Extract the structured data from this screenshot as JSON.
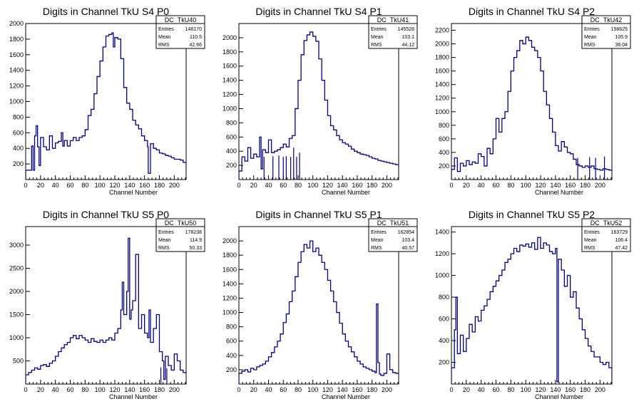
{
  "chart_data": [
    {
      "type": "histogram",
      "title": "Digits in Channel TkU S4 P0",
      "xlabel": "Channel Number",
      "ylabel": "",
      "xlim": [
        0,
        216
      ],
      "ylim": [
        0,
        2000
      ],
      "xticks": [
        "0",
        "20",
        "40",
        "60",
        "80",
        "100",
        "120",
        "140",
        "160",
        "180",
        "200"
      ],
      "yticks": [
        "200",
        "400",
        "600",
        "800",
        "1000",
        "1200",
        "1400",
        "1600",
        "1800",
        "2000"
      ],
      "stats": {
        "name": "DC_TkU40",
        "entries_label": "Entries",
        "entries": "148170",
        "mean_label": "Mean",
        "mean": "110.5",
        "rms_label": "RMS",
        "rms": "42.66"
      },
      "x": [
        0,
        8,
        10,
        12,
        14,
        16,
        18,
        20,
        24,
        28,
        32,
        36,
        40,
        44,
        48,
        50,
        52,
        56,
        60,
        64,
        68,
        72,
        76,
        80,
        84,
        88,
        92,
        96,
        100,
        104,
        108,
        112,
        116,
        118,
        120,
        124,
        128,
        132,
        136,
        140,
        144,
        148,
        152,
        156,
        160,
        164,
        165,
        168,
        172,
        176,
        180,
        184,
        188,
        192,
        196,
        200,
        204,
        208,
        212,
        216
      ],
      "values": [
        120,
        430,
        120,
        560,
        690,
        420,
        180,
        540,
        420,
        380,
        560,
        400,
        470,
        490,
        600,
        430,
        500,
        430,
        500,
        540,
        500,
        540,
        560,
        640,
        820,
        900,
        1100,
        1320,
        1520,
        1700,
        1840,
        1860,
        1880,
        1700,
        1820,
        1800,
        1550,
        1180,
        980,
        900,
        760,
        700,
        650,
        560,
        500,
        420,
        80,
        460,
        400,
        380,
        340,
        330,
        310,
        300,
        280,
        260,
        260,
        250,
        220,
        120
      ]
    },
    {
      "type": "histogram",
      "title": "Digits in Channel TkU S4 P1",
      "xlabel": "Channel Number",
      "ylabel": "",
      "xlim": [
        0,
        216
      ],
      "ylim": [
        0,
        2200
      ],
      "xticks": [
        "0",
        "20",
        "40",
        "60",
        "80",
        "100",
        "120",
        "140",
        "160",
        "180",
        "200"
      ],
      "yticks": [
        "200",
        "400",
        "600",
        "800",
        "1000",
        "1200",
        "1400",
        "1600",
        "1800",
        "2000"
      ],
      "stats": {
        "name": "DC_TkU41",
        "entries_label": "Entries",
        "entries": "145528",
        "mean_label": "Mean",
        "mean": "103.1",
        "rms_label": "RMS",
        "rms": "44.12"
      },
      "x": [
        0,
        4,
        8,
        12,
        16,
        20,
        24,
        28,
        30,
        32,
        36,
        40,
        44,
        48,
        52,
        56,
        60,
        64,
        68,
        72,
        76,
        80,
        84,
        88,
        92,
        96,
        100,
        104,
        108,
        112,
        116,
        120,
        124,
        128,
        132,
        136,
        140,
        144,
        148,
        152,
        156,
        160,
        164,
        168,
        172,
        176,
        180,
        184,
        188,
        192,
        196,
        200,
        204,
        208,
        212,
        216
      ],
      "values": [
        120,
        320,
        260,
        450,
        300,
        360,
        320,
        600,
        150,
        420,
        380,
        560,
        380,
        400,
        420,
        450,
        500,
        460,
        580,
        620,
        1000,
        1400,
        1760,
        1960,
        2040,
        2080,
        2020,
        1950,
        1700,
        1400,
        1120,
        900,
        760,
        700,
        620,
        560,
        520,
        500,
        470,
        430,
        400,
        380,
        360,
        350,
        340,
        320,
        300,
        290,
        270,
        260,
        250,
        240,
        230,
        220,
        210,
        180
      ],
      "spikes": [
        {
          "x": 34,
          "y": 20
        },
        {
          "x": 46,
          "y": 30
        },
        {
          "x": 54,
          "y": 40
        },
        {
          "x": 60,
          "y": 20
        },
        {
          "x": 64,
          "y": 30
        },
        {
          "x": 70,
          "y": 20
        },
        {
          "x": 74,
          "y": 150
        },
        {
          "x": 78,
          "y": 20
        },
        {
          "x": 82,
          "y": 80
        }
      ]
    },
    {
      "type": "histogram",
      "title": "Digits in Channel TkU S4 P2",
      "xlabel": "Channel Number",
      "ylabel": "",
      "xlim": [
        0,
        216
      ],
      "ylim": [
        0,
        2300
      ],
      "xticks": [
        "0",
        "20",
        "40",
        "60",
        "80",
        "100",
        "120",
        "140",
        "160",
        "180",
        "200"
      ],
      "yticks": [
        "200",
        "400",
        "600",
        "800",
        "1000",
        "1200",
        "1400",
        "1600",
        "1800",
        "2000",
        "2200"
      ],
      "stats": {
        "name": "DC_TkU42",
        "entries_label": "Entries",
        "entries": "158625",
        "mean_label": "Mean",
        "mean": "105.9",
        "rms_label": "RMS",
        "rms": "36.04"
      },
      "x": [
        0,
        4,
        8,
        12,
        16,
        20,
        24,
        28,
        32,
        36,
        40,
        44,
        48,
        52,
        56,
        60,
        64,
        68,
        72,
        76,
        80,
        84,
        88,
        92,
        96,
        100,
        104,
        108,
        112,
        116,
        120,
        124,
        128,
        132,
        136,
        140,
        144,
        148,
        152,
        156,
        160,
        164,
        168,
        172,
        176,
        180,
        184,
        188,
        192,
        196,
        200,
        204,
        208,
        212,
        216
      ],
      "values": [
        150,
        320,
        120,
        240,
        200,
        280,
        220,
        260,
        240,
        380,
        340,
        200,
        460,
        380,
        600,
        900,
        700,
        900,
        1000,
        1300,
        1600,
        1800,
        1900,
        2050,
        2000,
        2100,
        2050,
        1950,
        1900,
        1800,
        1600,
        1300,
        1100,
        900,
        700,
        500,
        420,
        560,
        480,
        400,
        380,
        300,
        220,
        200,
        180,
        200,
        180,
        200,
        160,
        150,
        140,
        160,
        150,
        140,
        120
      ],
      "spikes": [
        {
          "x": 170,
          "y": 20
        },
        {
          "x": 186,
          "y": 30
        },
        {
          "x": 194,
          "y": 20
        },
        {
          "x": 206,
          "y": 40
        }
      ]
    },
    {
      "type": "histogram",
      "title": "Digits in Channel TkU S5 P0",
      "xlabel": "Channel Number",
      "ylabel": "",
      "xlim": [
        0,
        216
      ],
      "ylim": [
        0,
        3400
      ],
      "xticks": [
        "0",
        "20",
        "40",
        "60",
        "80",
        "100",
        "120",
        "140",
        "160",
        "180",
        "200"
      ],
      "yticks": [
        "500",
        "1000",
        "1500",
        "2000",
        "2500",
        "3000"
      ],
      "stats": {
        "name": "DC_TkU50",
        "entries_label": "Entries",
        "entries": "178238",
        "mean_label": "Mean",
        "mean": "114.9",
        "rms_label": "RMS",
        "rms": "50.33"
      },
      "x": [
        0,
        4,
        8,
        12,
        16,
        20,
        24,
        28,
        32,
        36,
        40,
        44,
        48,
        52,
        56,
        60,
        64,
        68,
        72,
        76,
        80,
        84,
        88,
        92,
        96,
        100,
        104,
        108,
        112,
        116,
        120,
        124,
        128,
        130,
        132,
        136,
        138,
        140,
        142,
        144,
        148,
        152,
        156,
        160,
        164,
        166,
        168,
        172,
        176,
        180,
        184,
        186,
        188,
        192,
        196,
        200,
        204,
        208,
        212,
        216
      ],
      "values": [
        200,
        250,
        300,
        350,
        320,
        400,
        420,
        380,
        450,
        500,
        600,
        700,
        780,
        850,
        900,
        1000,
        1050,
        980,
        1050,
        1000,
        950,
        900,
        980,
        920,
        900,
        950,
        900,
        950,
        1000,
        950,
        1100,
        1200,
        1600,
        2200,
        1500,
        2000,
        3150,
        1400,
        1600,
        1800,
        2800,
        1200,
        1500,
        1100,
        1000,
        1600,
        900,
        1200,
        1500,
        700,
        500,
        100,
        600,
        400,
        300,
        650,
        500,
        300,
        250,
        200
      ],
      "spikes": [
        {
          "x": 182,
          "y": 60
        },
        {
          "x": 190,
          "y": 40
        }
      ]
    },
    {
      "type": "histogram",
      "title": "Digits in Channel TkU S5 P1",
      "xlabel": "Channel Number",
      "ylabel": "",
      "xlim": [
        0,
        216
      ],
      "ylim": [
        0,
        2200
      ],
      "xticks": [
        "0",
        "20",
        "40",
        "60",
        "80",
        "100",
        "120",
        "140",
        "160",
        "180",
        "200"
      ],
      "yticks": [
        "200",
        "400",
        "600",
        "800",
        "1000",
        "1200",
        "1400",
        "1600",
        "1800",
        "2000"
      ],
      "stats": {
        "name": "DC_TkU51",
        "entries_label": "Entries",
        "entries": "162854",
        "mean_label": "Mean",
        "mean": "103.4",
        "rms_label": "RMS",
        "rms": "40.57"
      },
      "x": [
        0,
        4,
        8,
        12,
        16,
        20,
        24,
        28,
        32,
        36,
        40,
        44,
        48,
        52,
        56,
        60,
        64,
        68,
        72,
        76,
        80,
        84,
        88,
        92,
        96,
        100,
        104,
        108,
        112,
        116,
        120,
        124,
        128,
        132,
        136,
        140,
        144,
        148,
        152,
        156,
        160,
        164,
        168,
        172,
        176,
        180,
        184,
        186,
        188,
        190,
        192,
        196,
        200,
        204,
        208,
        212,
        216
      ],
      "values": [
        150,
        180,
        200,
        170,
        220,
        200,
        240,
        260,
        280,
        320,
        380,
        440,
        520,
        600,
        700,
        860,
        980,
        1150,
        1300,
        1500,
        1700,
        1850,
        1950,
        1900,
        2000,
        1850,
        1900,
        1800,
        1700,
        1600,
        1450,
        1300,
        1150,
        1000,
        850,
        700,
        600,
        520,
        450,
        380,
        320,
        280,
        240,
        220,
        200,
        180,
        160,
        1120,
        300,
        140,
        120,
        150,
        420,
        200,
        160,
        150,
        130
      ]
    },
    {
      "type": "histogram",
      "title": "Digits in Channel TkU S5 P2",
      "xlabel": "Channel Number",
      "ylabel": "",
      "xlim": [
        0,
        216
      ],
      "ylim": [
        0,
        1450
      ],
      "xticks": [
        "0",
        "20",
        "40",
        "60",
        "80",
        "100",
        "120",
        "140",
        "160",
        "180",
        "200"
      ],
      "yticks": [
        "200",
        "400",
        "600",
        "800",
        "1000",
        "1200",
        "1400"
      ],
      "stats": {
        "name": "DC_TkU52",
        "entries_label": "Entries",
        "entries": "163729",
        "mean_label": "Mean",
        "mean": "106.4",
        "rms_label": "RMS",
        "rms": "47.42"
      },
      "x": [
        0,
        4,
        6,
        8,
        12,
        16,
        20,
        24,
        28,
        32,
        36,
        40,
        44,
        48,
        52,
        56,
        60,
        64,
        68,
        72,
        76,
        80,
        84,
        88,
        92,
        96,
        100,
        104,
        108,
        112,
        116,
        120,
        124,
        128,
        132,
        136,
        140,
        142,
        144,
        148,
        152,
        156,
        160,
        164,
        168,
        172,
        176,
        180,
        184,
        188,
        192,
        196,
        200,
        204,
        208,
        212,
        216
      ],
      "values": [
        150,
        500,
        800,
        280,
        450,
        300,
        420,
        550,
        480,
        620,
        580,
        680,
        720,
        780,
        850,
        900,
        950,
        1000,
        1050,
        1120,
        1150,
        1200,
        1250,
        1220,
        1280,
        1270,
        1290,
        1260,
        1300,
        1240,
        1350,
        1250,
        1300,
        1280,
        1220,
        1200,
        1250,
        20,
        1150,
        1050,
        900,
        1000,
        800,
        850,
        700,
        600,
        500,
        420,
        350,
        300,
        250,
        250,
        200,
        180,
        200,
        150,
        40
      ]
    }
  ]
}
